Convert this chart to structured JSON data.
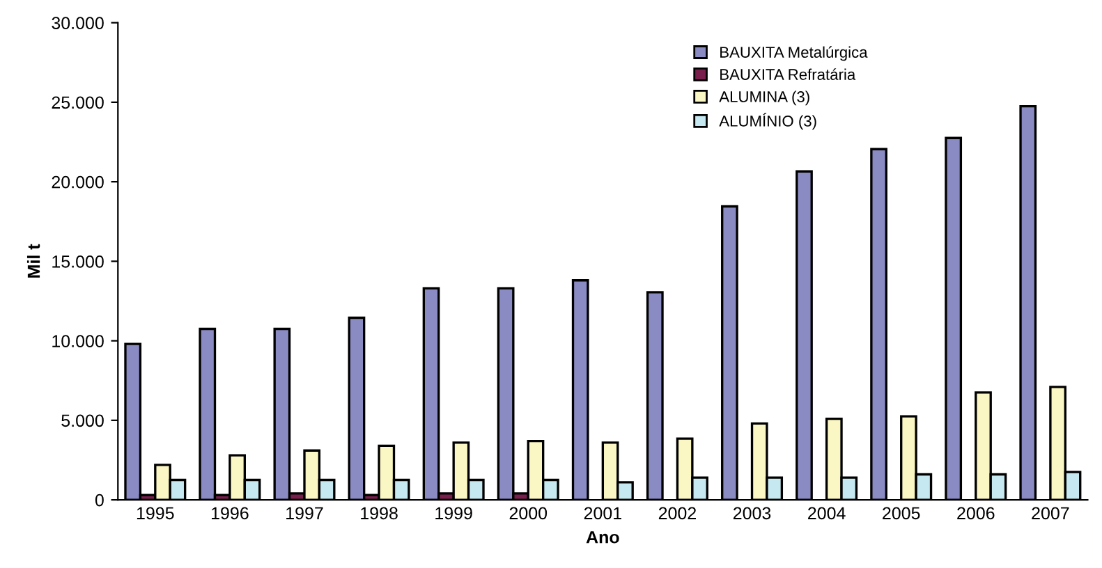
{
  "chart_data": {
    "type": "bar",
    "xlabel": "Ano",
    "ylabel": "Mil t",
    "categories": [
      "1995",
      "1996",
      "1997",
      "1998",
      "1999",
      "2000",
      "2001",
      "2002",
      "2003",
      "2004",
      "2005",
      "2006",
      "2007"
    ],
    "series": [
      {
        "name": "BAUXITA Metalúrgica",
        "color": "#8b8bc4",
        "values": [
          9800,
          10750,
          10750,
          11450,
          13300,
          13300,
          13800,
          13050,
          18450,
          20650,
          22050,
          22750,
          24750
        ]
      },
      {
        "name": "BAUXITA Refratária",
        "color": "#7a1f4c",
        "values": [
          300,
          300,
          400,
          300,
          400,
          400,
          null,
          null,
          null,
          null,
          null,
          null,
          null
        ]
      },
      {
        "name": "ALUMINA (3)",
        "color": "#fbf7c4",
        "values": [
          2200,
          2800,
          3100,
          3400,
          3600,
          3700,
          3600,
          3850,
          4800,
          5100,
          5250,
          6750,
          7100
        ]
      },
      {
        "name": "ALUMÍNIO (3)",
        "color": "#c6e8f0",
        "values": [
          1250,
          1250,
          1250,
          1250,
          1250,
          1250,
          1100,
          1400,
          1400,
          1400,
          1600,
          1600,
          1750
        ]
      }
    ],
    "ylim": [
      0,
      30000
    ],
    "yticks": [
      {
        "value": 0,
        "label": "0"
      },
      {
        "value": 5000,
        "label": "5.000"
      },
      {
        "value": 10000,
        "label": "10.000"
      },
      {
        "value": 15000,
        "label": "15.000"
      },
      {
        "value": 20000,
        "label": "20.000"
      },
      {
        "value": 25000,
        "label": "25.000"
      },
      {
        "value": 30000,
        "label": "30.000"
      }
    ],
    "grid": false,
    "legend": "top"
  }
}
